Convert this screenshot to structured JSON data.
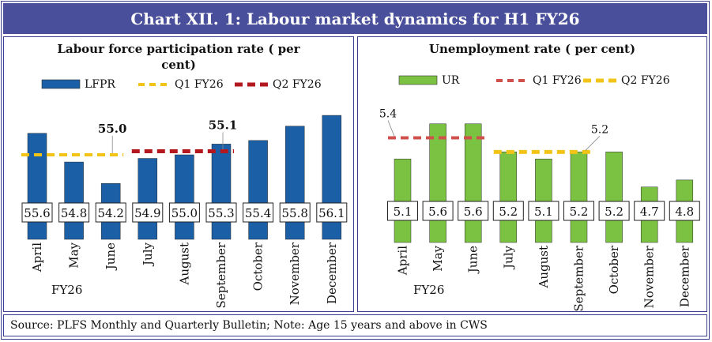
{
  "title": "Chart XII. 1: Labour market dynamics for H1 FY26",
  "source_note": "Source: PLFS Monthly and Quarterly Bulletin; Note: Age 15 years and above in CWS",
  "chart_data": [
    {
      "type": "bar",
      "title_lines": [
        "Labour force participation rate ( per",
        "cent)"
      ],
      "categories": [
        "April",
        "May",
        "June",
        "July",
        "August",
        "September",
        "October",
        "November",
        "December"
      ],
      "series": [
        {
          "name": "LFPR",
          "values": [
            55.6,
            54.8,
            54.2,
            54.9,
            55.0,
            55.3,
            55.4,
            55.8,
            56.1
          ]
        }
      ],
      "value_labels": [
        "55.6",
        "54.8",
        "54.2",
        "54.9",
        "55.0",
        "55.3",
        "55.4",
        "55.8",
        "56.1"
      ],
      "quarter_lines": [
        {
          "name": "Q1 FY26",
          "value": 55.0,
          "label": "55.0",
          "start_index": 0,
          "end_index": 2
        },
        {
          "name": "Q2 FY26",
          "value": 55.1,
          "label": "55.1",
          "start_index": 3,
          "end_index": 5
        }
      ],
      "legend": [
        "LFPR",
        "Q1 FY26",
        "Q2 FY26"
      ],
      "xlabel": "FY26",
      "ylim": [
        53.7,
        56.3
      ],
      "colors": {
        "bar": "#1b5fa6",
        "q1": "#f2c418",
        "q2": "#b3181f"
      }
    },
    {
      "type": "bar",
      "title_lines": [
        "Unemployment rate ( per cent)"
      ],
      "categories": [
        "April",
        "May",
        "June",
        "July",
        "August",
        "September",
        "October",
        "November",
        "December"
      ],
      "series": [
        {
          "name": "UR",
          "values": [
            5.1,
            5.6,
            5.6,
            5.2,
            5.1,
            5.2,
            5.2,
            4.7,
            4.8
          ]
        }
      ],
      "value_labels": [
        "5.1",
        "5.6",
        "5.6",
        "5.2",
        "5.1",
        "5.2",
        "5.2",
        "4.7",
        "4.8"
      ],
      "quarter_lines": [
        {
          "name": "Q1 FY26",
          "value": 5.4,
          "label": "5.4",
          "start_index": 0,
          "end_index": 2
        },
        {
          "name": "Q2 FY26",
          "value": 5.2,
          "label": "5.2",
          "start_index": 3,
          "end_index": 5
        }
      ],
      "legend": [
        "UR",
        "Q1 FY26",
        "Q2 FY26"
      ],
      "xlabel": "FY26",
      "ylim": [
        4.45,
        5.62
      ],
      "colors": {
        "bar": "#7cc242",
        "q1": "#d0504c",
        "q2": "#f2c418"
      }
    }
  ]
}
